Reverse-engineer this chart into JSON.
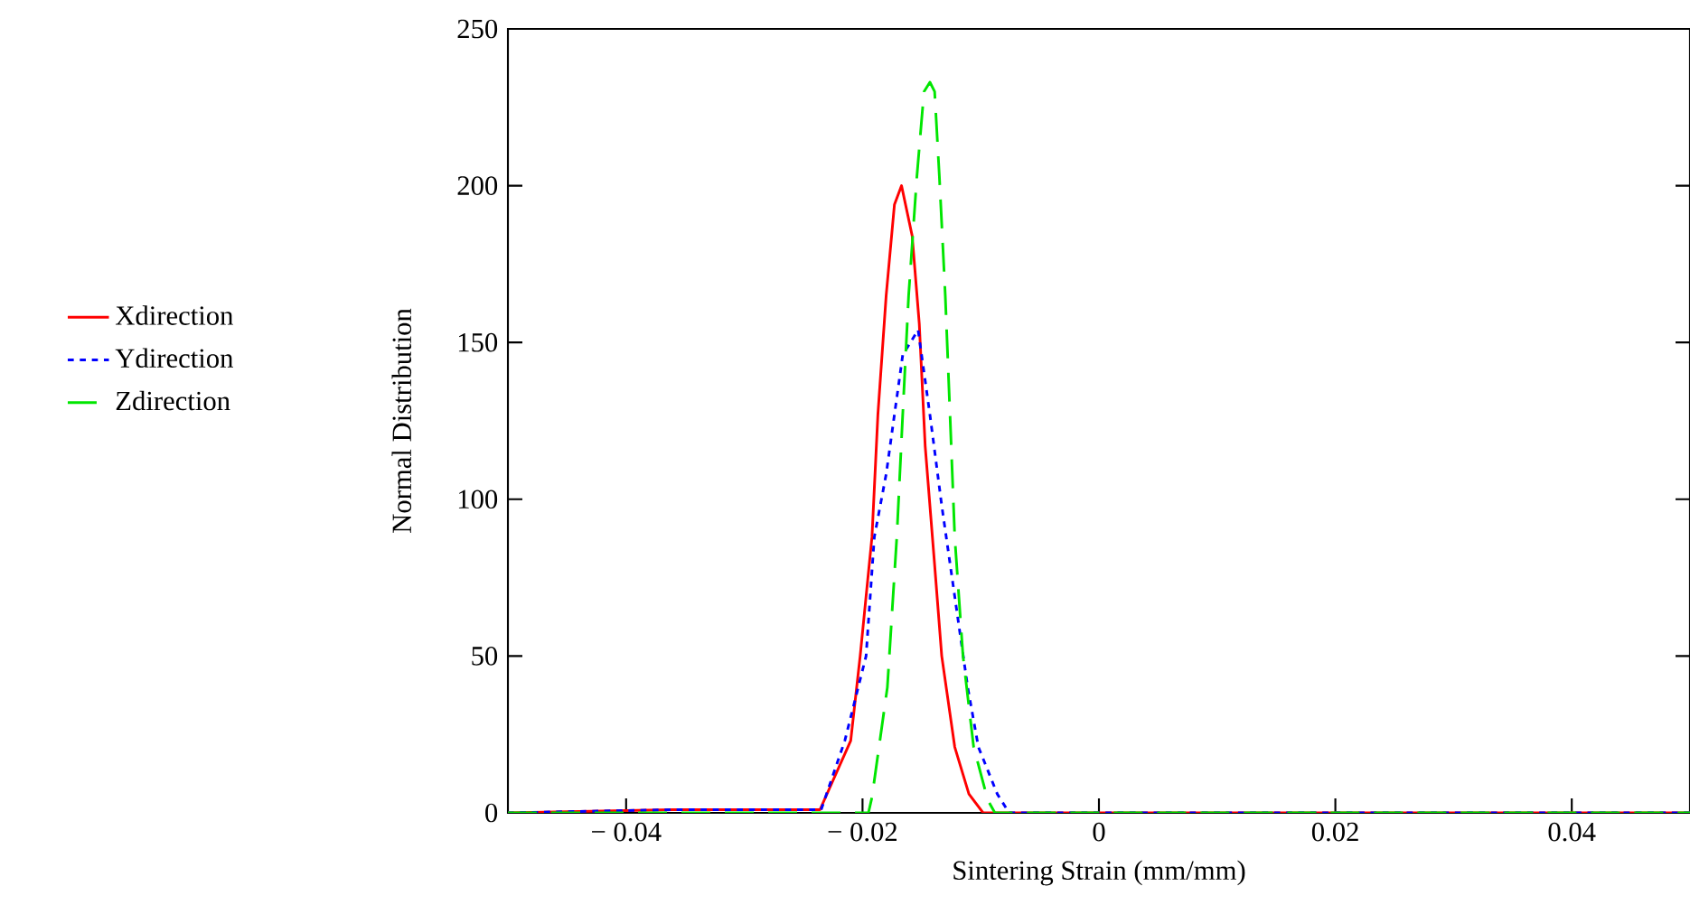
{
  "chart_data": {
    "type": "line",
    "xlabel": "Sintering Strain (mm/mm)",
    "ylabel": "Normal Distribution",
    "xlim": [
      -0.05,
      0.05
    ],
    "ylim": [
      0,
      250
    ],
    "xticks": [
      {
        "value": -0.04,
        "label": "− 0.04"
      },
      {
        "value": -0.02,
        "label": "− 0.02"
      },
      0,
      0.02,
      0.04
    ],
    "yticks": [
      0,
      50,
      100,
      150,
      200,
      250
    ],
    "grid": false,
    "legend": "left",
    "marker": "none",
    "series": [
      {
        "name": "Xdirection",
        "color": "#ff0000",
        "line_style": "solid",
        "x": [
          -0.05,
          -0.036,
          -0.026,
          -0.0236,
          -0.021,
          -0.0202,
          -0.0192,
          -0.0187,
          -0.018,
          -0.0173,
          -0.0167,
          -0.0158,
          -0.0152,
          -0.0147,
          -0.0139,
          -0.0133,
          -0.0122,
          -0.011,
          -0.0098,
          0.05
        ],
        "values": [
          0,
          1,
          1,
          1,
          23,
          50,
          88,
          127,
          165,
          194,
          200,
          184,
          156,
          117,
          79,
          50,
          21,
          6,
          0,
          0
        ]
      },
      {
        "name": "Ydirection",
        "color": "#0000ff",
        "line_style": "dotted",
        "x": [
          -0.05,
          -0.036,
          -0.026,
          -0.0235,
          -0.0215,
          -0.0197,
          -0.019,
          -0.018,
          -0.0173,
          -0.0166,
          -0.0153,
          -0.0143,
          -0.0133,
          -0.0122,
          -0.0111,
          -0.0102,
          -0.0086,
          -0.0076,
          0.05
        ],
        "values": [
          0,
          1,
          1,
          1,
          23,
          50,
          88,
          108,
          127,
          146,
          154,
          127,
          98,
          69,
          40,
          21,
          6,
          0,
          0
        ]
      },
      {
        "name": "Zdirection",
        "color": "#00e600",
        "line_style": "dashed",
        "x": [
          -0.05,
          -0.0195,
          -0.0192,
          -0.0179,
          -0.0171,
          -0.0166,
          -0.0161,
          -0.0154,
          -0.0148,
          -0.0143,
          -0.0139,
          -0.0135,
          -0.013,
          -0.0126,
          -0.0122,
          -0.0115,
          -0.0106,
          -0.0094,
          -0.0088,
          0.05
        ],
        "values": [
          0,
          0,
          5,
          40,
          88,
          127,
          165,
          203,
          230,
          233,
          230,
          203,
          165,
          127,
          88,
          50,
          21,
          4,
          0,
          0
        ]
      }
    ]
  }
}
